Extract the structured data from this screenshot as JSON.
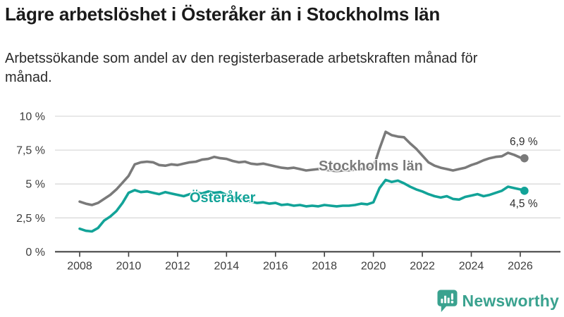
{
  "header": {
    "title": "Lägre arbetslöshet i Österåker än i Stockholms län",
    "subtitle": "Arbetssökande som andel av den registerbaserade arbetskraften månad för månad."
  },
  "chart_data": {
    "type": "line",
    "unit": "%",
    "grid": true,
    "legend_position": "inline-labels",
    "x_axis": {
      "range": [
        2008,
        2026.6
      ],
      "ticks": [
        2008,
        2010,
        2012,
        2014,
        2016,
        2018,
        2020,
        2022,
        2024,
        2026
      ]
    },
    "y_axis": {
      "range": [
        0,
        10
      ],
      "ticks": [
        {
          "label": "10 %",
          "value": 10
        },
        {
          "label": "7,5 %",
          "value": 7.5
        },
        {
          "label": "5 %",
          "value": 5
        },
        {
          "label": "2,5 %",
          "value": 2.5
        },
        {
          "label": "0 %",
          "value": 0
        }
      ]
    },
    "x": [
      2008,
      2008.25,
      2008.5,
      2008.75,
      2009,
      2009.25,
      2009.5,
      2009.75,
      2010,
      2010.25,
      2010.5,
      2010.75,
      2011,
      2011.25,
      2011.5,
      2011.75,
      2012,
      2012.25,
      2012.5,
      2012.75,
      2013,
      2013.25,
      2013.5,
      2013.75,
      2014,
      2014.25,
      2014.5,
      2014.75,
      2015,
      2015.25,
      2015.5,
      2015.75,
      2016,
      2016.25,
      2016.5,
      2016.75,
      2017,
      2017.25,
      2017.5,
      2017.75,
      2018,
      2018.25,
      2018.5,
      2018.75,
      2019,
      2019.25,
      2019.5,
      2019.75,
      2020,
      2020.25,
      2020.5,
      2020.75,
      2021,
      2021.25,
      2021.5,
      2021.75,
      2022,
      2022.25,
      2022.5,
      2022.75,
      2023,
      2023.25,
      2023.5,
      2023.75,
      2024,
      2024.25,
      2024.5,
      2024.75,
      2025,
      2025.25,
      2025.5,
      2025.75,
      2026,
      2026.17
    ],
    "series": [
      {
        "name": "Stockholms län",
        "color": "#7a7a7a",
        "end_label": "6,9 %",
        "end_value": 6.9,
        "values": [
          3.7,
          3.55,
          3.45,
          3.6,
          3.9,
          4.2,
          4.6,
          5.1,
          5.6,
          6.45,
          6.6,
          6.65,
          6.6,
          6.4,
          6.35,
          6.45,
          6.4,
          6.5,
          6.6,
          6.65,
          6.8,
          6.85,
          7.0,
          6.9,
          6.85,
          6.7,
          6.6,
          6.65,
          6.5,
          6.45,
          6.5,
          6.4,
          6.3,
          6.2,
          6.15,
          6.2,
          6.1,
          6.0,
          6.05,
          6.1,
          6.05,
          6.0,
          5.95,
          6.0,
          6.0,
          6.05,
          6.1,
          6.15,
          6.2,
          7.6,
          8.85,
          8.6,
          8.5,
          8.45,
          8.0,
          7.6,
          7.1,
          6.6,
          6.35,
          6.2,
          6.1,
          6.0,
          6.1,
          6.2,
          6.4,
          6.55,
          6.75,
          6.9,
          7.0,
          7.05,
          7.3,
          7.15,
          6.95,
          6.9
        ]
      },
      {
        "name": "Österåker",
        "color": "#12a398",
        "end_label": "4,5 %",
        "end_value": 4.5,
        "values": [
          1.7,
          1.55,
          1.5,
          1.75,
          2.3,
          2.6,
          3.0,
          3.6,
          4.35,
          4.55,
          4.4,
          4.45,
          4.35,
          4.25,
          4.4,
          4.3,
          4.2,
          4.1,
          4.25,
          4.35,
          4.3,
          4.45,
          4.35,
          4.4,
          4.2,
          4.05,
          3.9,
          3.8,
          3.7,
          3.6,
          3.65,
          3.55,
          3.6,
          3.45,
          3.5,
          3.4,
          3.45,
          3.35,
          3.4,
          3.35,
          3.45,
          3.4,
          3.35,
          3.4,
          3.4,
          3.45,
          3.55,
          3.5,
          3.65,
          4.7,
          5.3,
          5.15,
          5.25,
          5.05,
          4.8,
          4.6,
          4.45,
          4.25,
          4.1,
          4.0,
          4.1,
          3.9,
          3.85,
          4.05,
          4.15,
          4.25,
          4.1,
          4.2,
          4.35,
          4.5,
          4.8,
          4.7,
          4.6,
          4.5
        ]
      }
    ]
  },
  "footer": {
    "brand": "Newsworthy",
    "brand_color": "#3aa28f"
  },
  "style": {
    "gridline_color": "#dadada",
    "axis_color": "#3c3c3c",
    "tick_label_color": "#3d3d3d"
  }
}
